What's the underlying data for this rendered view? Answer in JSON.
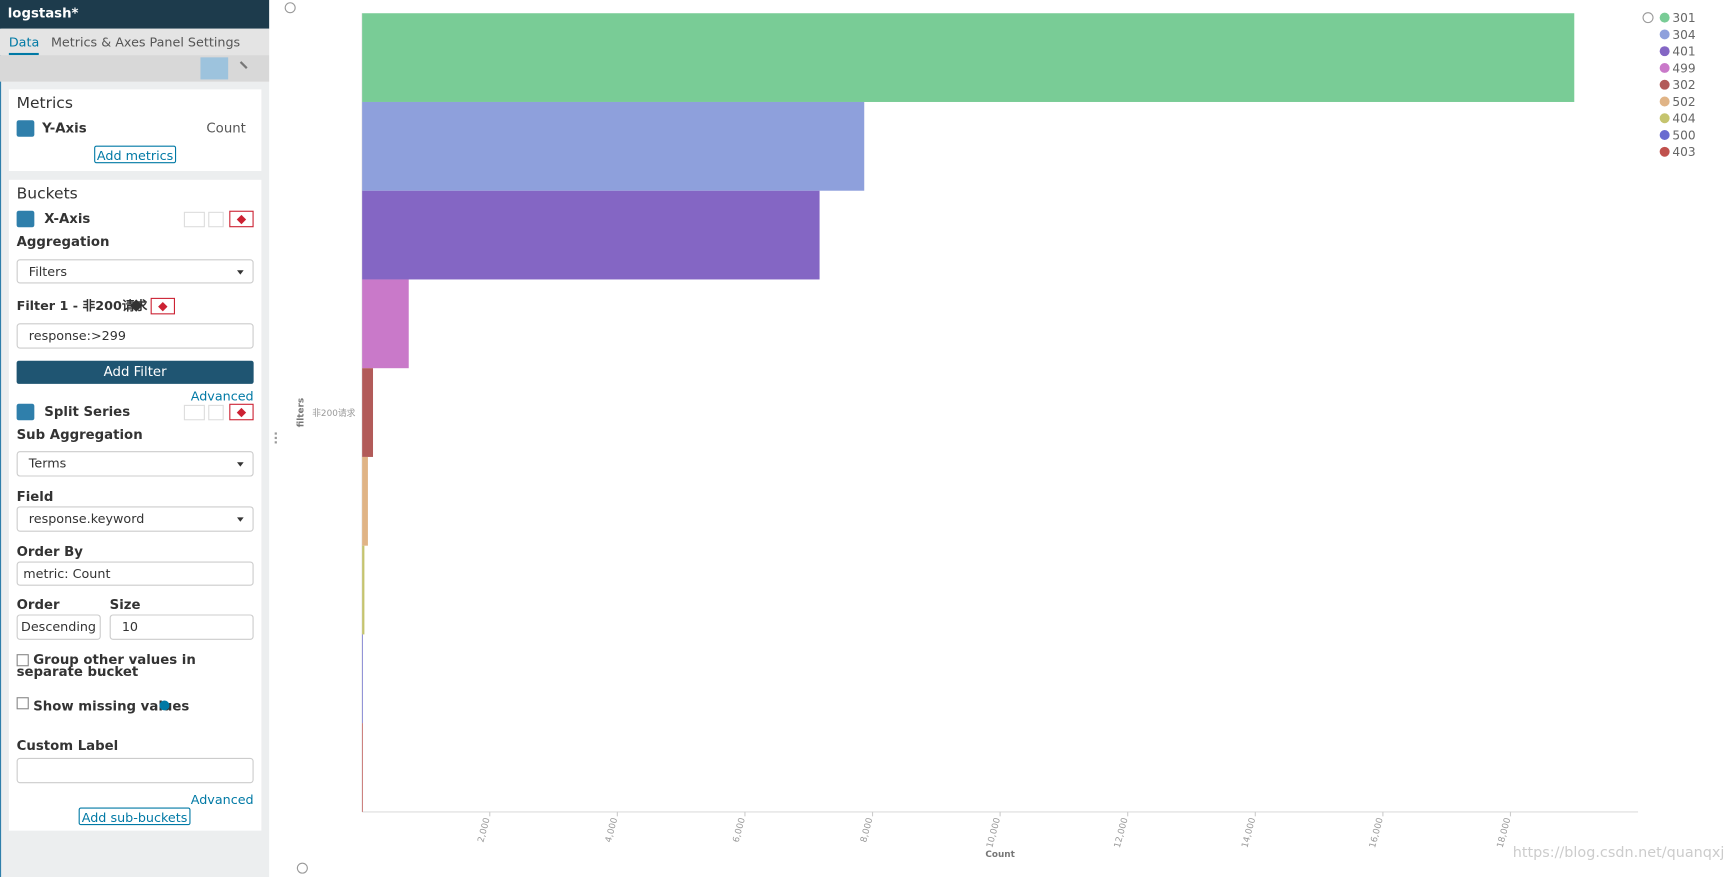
{
  "header": {
    "title": "logstash*"
  },
  "tabs": [
    "Data",
    "Metrics & Axes",
    "Panel Settings"
  ],
  "metrics": {
    "title": "Metrics",
    "axis": "Y-Axis",
    "aggregation": "Count",
    "add_button": "Add metrics"
  },
  "buckets": {
    "title": "Buckets",
    "x_axis": "X-Axis",
    "aggregation_label": "Aggregation",
    "aggregation": "Filters",
    "filter_label": "Filter 1 - 非200请求",
    "filter_query": "response:>299",
    "add_filter": "Add Filter",
    "advanced": "Advanced",
    "split": "Split Series",
    "sub_aggregation_label": "Sub Aggregation",
    "sub_aggregation": "Terms",
    "field_label": "Field",
    "field": "response.keyword",
    "order_by_label": "Order By",
    "order_by": "metric: Count",
    "order_label": "Order",
    "order": "Descending",
    "size_label": "Size",
    "size": "10",
    "group_other": "Group other values in separate bucket",
    "show_missing": "Show missing values",
    "custom_label": "Custom Label",
    "advanced_2": "Advanced",
    "add_sub_buckets": "Add sub-buckets"
  },
  "watermark": "https://blog.csdn.net/quanqxj",
  "chart_data": {
    "type": "bar",
    "orientation": "horizontal",
    "categories": [
      "非200请求"
    ],
    "series": [
      {
        "name": "301",
        "color": "#79cc96",
        "values": [
          19000
        ]
      },
      {
        "name": "304",
        "color": "#8ea0dc",
        "values": [
          7870
        ]
      },
      {
        "name": "401",
        "color": "#8466c4",
        "values": [
          7170
        ]
      },
      {
        "name": "499",
        "color": "#c979c9",
        "values": [
          730
        ]
      },
      {
        "name": "302",
        "color": "#b25b59",
        "values": [
          170
        ]
      },
      {
        "name": "502",
        "color": "#e0b486",
        "values": [
          90
        ]
      },
      {
        "name": "404",
        "color": "#c5c46e",
        "values": [
          35
        ]
      },
      {
        "name": "500",
        "color": "#6a6bd0",
        "values": [
          10
        ]
      },
      {
        "name": "403",
        "color": "#c0514d",
        "values": [
          5
        ]
      }
    ],
    "xlabel": "Count",
    "ylabel": "filters",
    "xlim": [
      0,
      20000
    ],
    "xticks": [
      {
        "value": 2000,
        "label": "2,000"
      },
      {
        "value": 4000,
        "label": "4,000"
      },
      {
        "value": 6000,
        "label": "6,000"
      },
      {
        "value": 8000,
        "label": "8,000"
      },
      {
        "value": 10000,
        "label": "10,000"
      },
      {
        "value": 12000,
        "label": "12,000"
      },
      {
        "value": 14000,
        "label": "14,000"
      },
      {
        "value": 16000,
        "label": "16,000"
      },
      {
        "value": 18000,
        "label": "18,000"
      }
    ],
    "legend": "top-right",
    "grid": false
  }
}
